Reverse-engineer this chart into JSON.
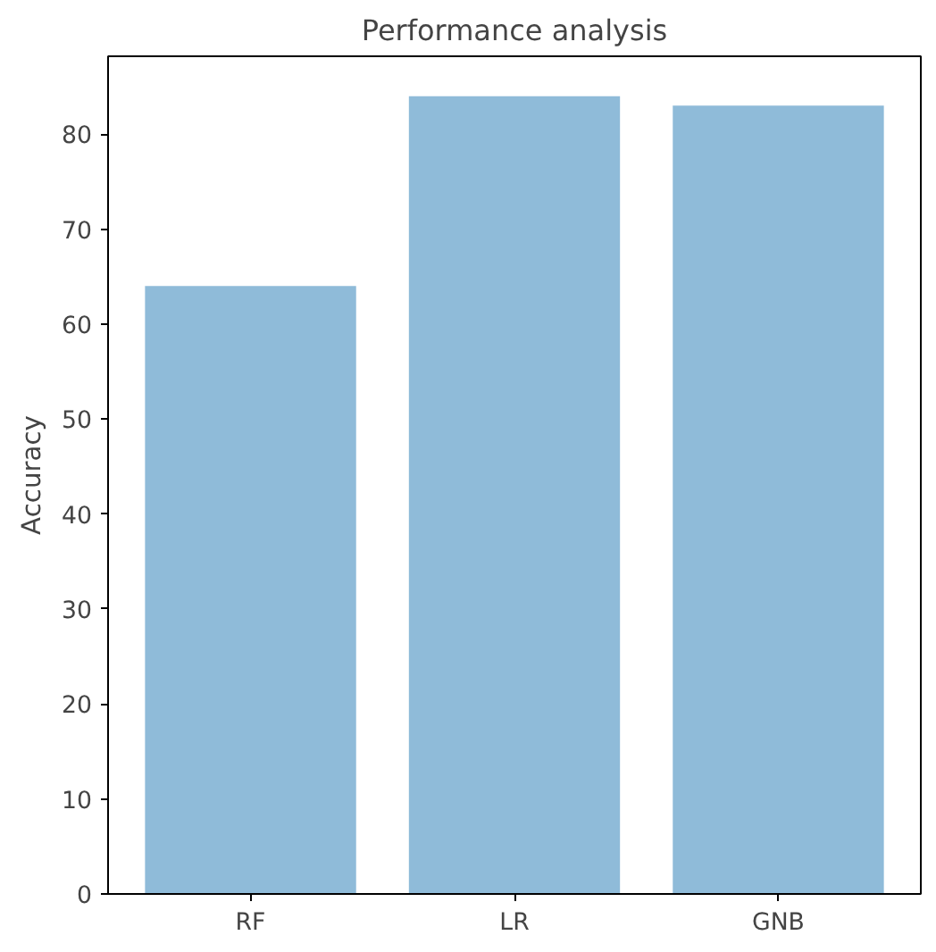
{
  "chart_data": {
    "type": "bar",
    "title": "Performance analysis",
    "ylabel": "Accuracy",
    "categories": [
      "RF",
      "LR",
      "GNB"
    ],
    "values": [
      64,
      84,
      83
    ],
    "color": "#8fbbd9",
    "ylim": [
      0,
      88.2
    ],
    "yticks": [
      0,
      10,
      20,
      30,
      40,
      50,
      60,
      70,
      80
    ],
    "grid": false
  }
}
